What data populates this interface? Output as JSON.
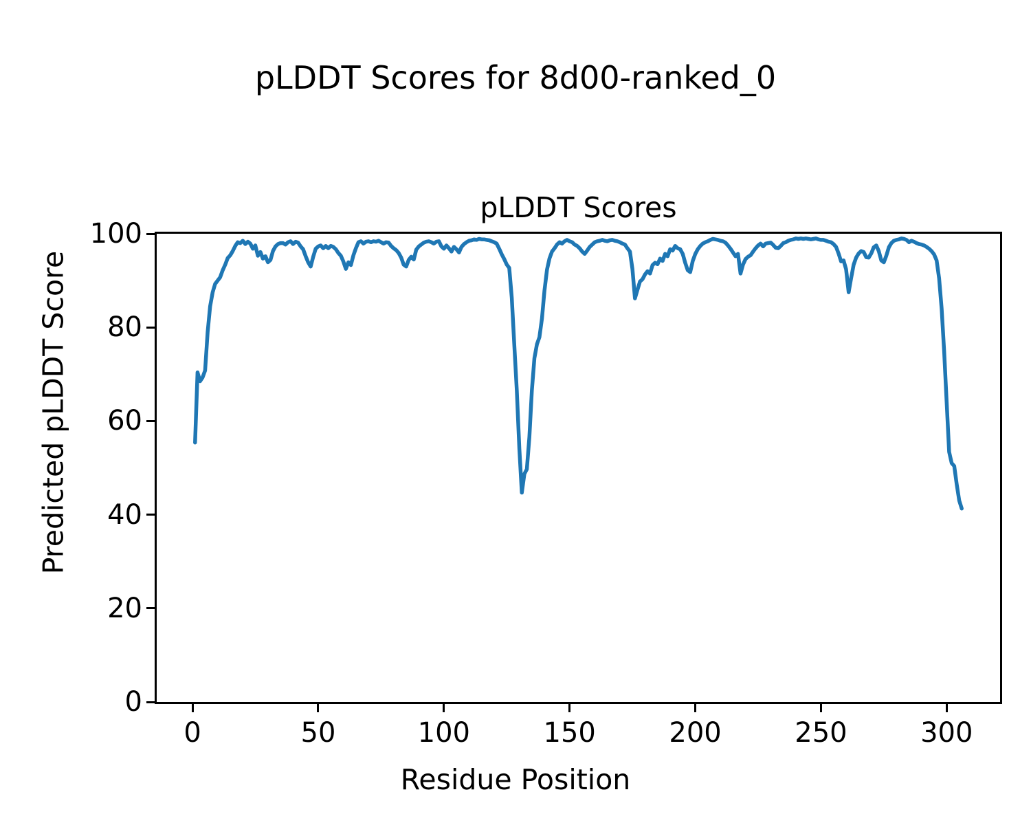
{
  "figure": {
    "suptitle": "pLDDT Scores for 8d00-ranked_0"
  },
  "chart_data": {
    "type": "line",
    "title": "pLDDT Scores",
    "xlabel": "Residue Position",
    "ylabel": "Predicted pLDDT Score",
    "x_start": 1,
    "xlim": [
      -14.25,
      321.25
    ],
    "ylim": [
      0,
      100
    ],
    "xticks": [
      0,
      50,
      100,
      150,
      200,
      250,
      300
    ],
    "yticks": [
      0,
      20,
      40,
      60,
      80,
      100
    ],
    "grid": false,
    "legend": null,
    "line_color": "#1f77b4",
    "line_width": 5.5,
    "series": [
      {
        "name": "pLDDT",
        "values": [
          55.4,
          70.4,
          68.5,
          69.3,
          70.8,
          79.0,
          84.5,
          87.5,
          89.3,
          90.0,
          90.7,
          92.2,
          93.4,
          94.8,
          95.4,
          96.3,
          97.4,
          98.2,
          98.0,
          98.5,
          97.8,
          98.3,
          97.9,
          96.8,
          97.5,
          95.3,
          96.1,
          94.7,
          95.2,
          93.9,
          94.4,
          96.3,
          97.3,
          97.8,
          98.0,
          98.0,
          97.7,
          98.2,
          98.4,
          97.8,
          98.3,
          98.1,
          97.3,
          96.7,
          95.2,
          93.9,
          93.0,
          95.1,
          96.8,
          97.3,
          97.5,
          96.9,
          97.4,
          96.9,
          97.4,
          97.2,
          96.7,
          95.9,
          95.3,
          94.1,
          92.5,
          93.9,
          93.3,
          95.4,
          96.9,
          98.2,
          98.4,
          97.9,
          98.3,
          98.4,
          98.2,
          98.4,
          98.3,
          98.5,
          98.2,
          97.9,
          98.2,
          98.1,
          97.4,
          96.9,
          96.5,
          95.9,
          94.9,
          93.4,
          93.0,
          94.4,
          95.1,
          94.5,
          96.6,
          97.3,
          97.7,
          98.1,
          98.3,
          98.4,
          98.2,
          97.9,
          98.3,
          98.4,
          97.3,
          96.8,
          97.5,
          96.9,
          96.2,
          97.2,
          96.7,
          96.0,
          97.2,
          97.8,
          98.2,
          98.5,
          98.6,
          98.8,
          98.7,
          98.9,
          98.8,
          98.8,
          98.7,
          98.6,
          98.4,
          98.2,
          97.9,
          96.8,
          95.6,
          94.6,
          93.4,
          92.7,
          86.3,
          76.4,
          66.5,
          54.1,
          44.7,
          48.7,
          49.7,
          56.6,
          66.5,
          73.4,
          76.4,
          77.9,
          81.9,
          87.8,
          92.3,
          94.7,
          96.2,
          96.9,
          97.7,
          98.2,
          97.9,
          98.4,
          98.7,
          98.4,
          98.2,
          97.7,
          97.4,
          96.9,
          96.2,
          95.7,
          96.4,
          97.2,
          97.7,
          98.2,
          98.4,
          98.5,
          98.7,
          98.5,
          98.4,
          98.6,
          98.7,
          98.5,
          98.4,
          98.2,
          97.9,
          97.7,
          96.9,
          96.2,
          92.5,
          86.2,
          88.0,
          89.8,
          90.3,
          91.3,
          92.0,
          91.5,
          93.3,
          93.8,
          93.5,
          94.7,
          94.2,
          95.7,
          95.2,
          96.7,
          96.4,
          97.4,
          96.9,
          96.7,
          95.7,
          93.8,
          92.2,
          91.8,
          94.2,
          95.7,
          96.7,
          97.4,
          97.9,
          98.2,
          98.4,
          98.7,
          98.9,
          98.8,
          98.7,
          98.5,
          98.4,
          98.1,
          97.5,
          96.8,
          96.0,
          95.2,
          95.7,
          91.5,
          93.4,
          94.6,
          95.1,
          95.4,
          96.2,
          96.9,
          97.5,
          97.9,
          97.3,
          97.9,
          98.0,
          98.1,
          97.6,
          97.0,
          96.9,
          97.4,
          98.0,
          98.2,
          98.5,
          98.7,
          98.8,
          99.0,
          98.9,
          99.0,
          98.9,
          99.0,
          98.9,
          98.8,
          98.9,
          99.0,
          98.8,
          98.7,
          98.7,
          98.5,
          98.3,
          98.2,
          97.8,
          97.2,
          95.8,
          94.1,
          94.3,
          92.4,
          87.5,
          90.5,
          93.4,
          94.9,
          95.8,
          96.3,
          96.1,
          95.0,
          94.9,
          95.8,
          97.1,
          97.5,
          96.3,
          94.3,
          93.9,
          95.3,
          97.1,
          98.0,
          98.5,
          98.7,
          98.8,
          99.0,
          98.9,
          98.7,
          98.2,
          98.5,
          98.3,
          98.0,
          97.8,
          97.7,
          97.5,
          97.2,
          96.8,
          96.3,
          95.6,
          94.3,
          90.5,
          84.0,
          75.0,
          64.0,
          53.4,
          51.0,
          50.4,
          46.5,
          43.0,
          41.3
        ]
      }
    ]
  }
}
